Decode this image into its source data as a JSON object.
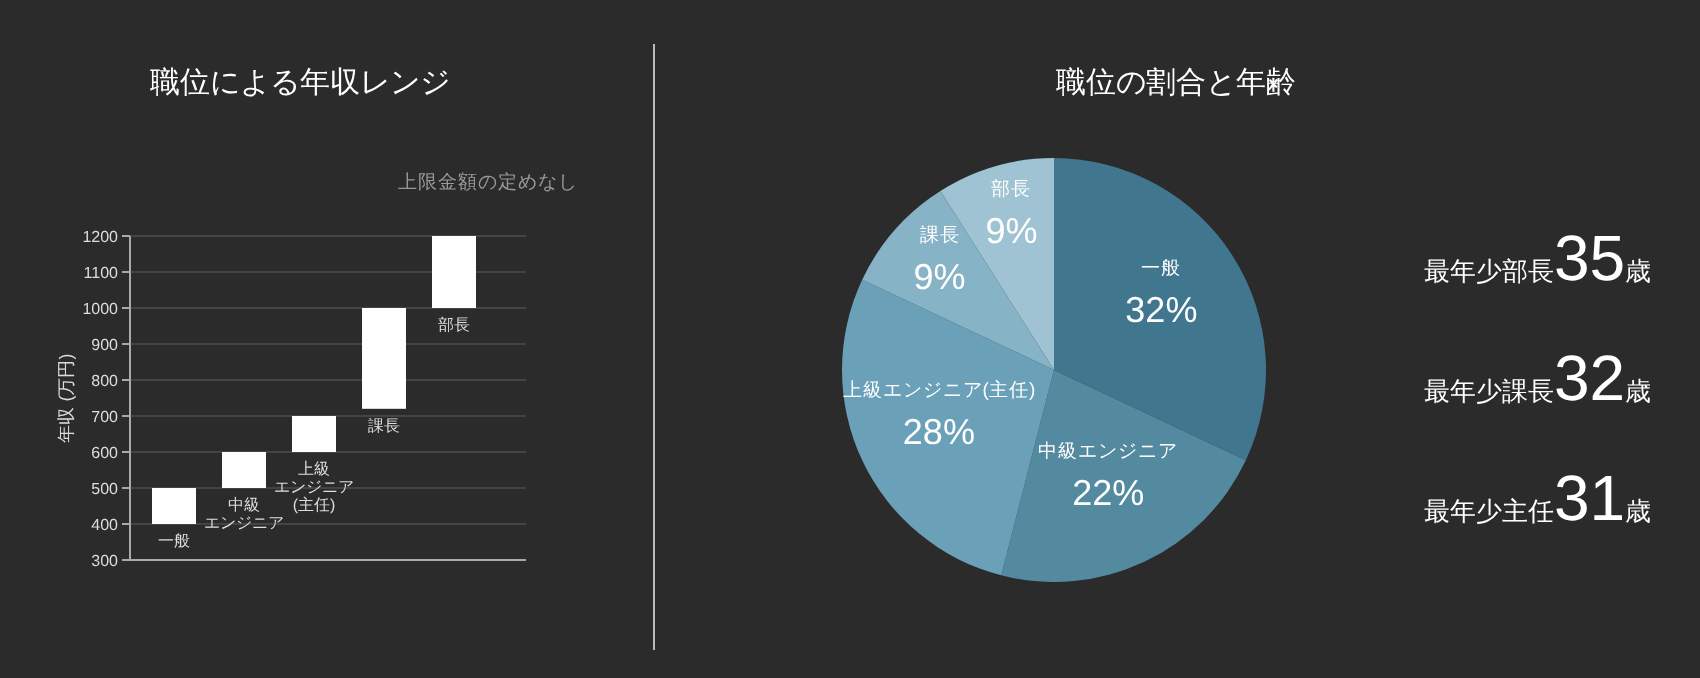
{
  "chart_data": [
    {
      "type": "bar",
      "title": "職位による年収レンジ",
      "ylabel": "年収 (万円)",
      "categories": [
        "一般",
        "中級エンジニア",
        "上級エンジニア(主任)",
        "課長",
        "部長"
      ],
      "values": [
        100,
        100,
        100,
        280,
        200
      ],
      "base": [
        400,
        500,
        600,
        720,
        1000
      ],
      "color": "#ffffff",
      "ylim": [
        300,
        1200
      ],
      "yticks": [
        300,
        400,
        500,
        600,
        700,
        800,
        900,
        1000,
        1100,
        1200
      ],
      "grid": "y",
      "annotations": [
        "上限金額の定めなし"
      ]
    },
    {
      "type": "pie",
      "title": "職位の割合と年齢",
      "categories": [
        "一般",
        "中級エンジニア",
        "上級エンジニア(主任)",
        "課長",
        "部長"
      ],
      "values": [
        32,
        22,
        28,
        9,
        9
      ],
      "colors": [
        "#41768f",
        "#548aa0",
        "#6aa0b8",
        "#87b3c7",
        "#9fc3d3"
      ],
      "value_labels": [
        "32%",
        "22%",
        "28%",
        "9%",
        "9%"
      ]
    },
    {
      "type": "other",
      "annotations": [
        "最年少部長",
        "35",
        "歳",
        "最年少課長",
        "32",
        "歳",
        "最年少主任",
        "31",
        "歳"
      ]
    }
  ]
}
